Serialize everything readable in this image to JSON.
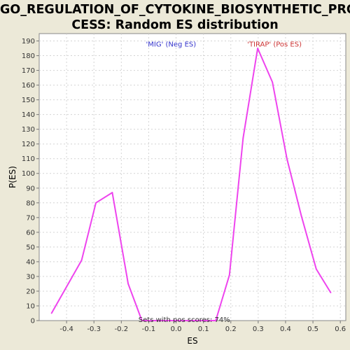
{
  "header": {
    "title_line1": "GO_REGULATION_OF_CYTOKINE_BIOSYNTHETIC_PRO",
    "title_line2": "CESS: Random ES distribution"
  },
  "chart_data": {
    "type": "line",
    "title": "GO_REGULATION_OF_CYTOKINE_BIOSYNTHETIC_PROCESS: Random ES distribution",
    "xlabel": "ES",
    "ylabel": "P(ES)",
    "xlim": [
      -0.5,
      0.62
    ],
    "ylim": [
      0,
      195
    ],
    "grid": true,
    "x_ticks": [
      "-0.4",
      "-0.3",
      "-0.2",
      "-0.1",
      "0.0",
      "0.1",
      "0.2",
      "0.3",
      "0.4",
      "0.5",
      "0.6"
    ],
    "x_tick_values": [
      -0.4,
      -0.3,
      -0.2,
      -0.1,
      0.0,
      0.1,
      0.2,
      0.3,
      0.4,
      0.5,
      0.6
    ],
    "y_ticks": [
      0,
      10,
      20,
      30,
      40,
      50,
      60,
      70,
      80,
      90,
      100,
      110,
      120,
      130,
      140,
      150,
      160,
      170,
      180,
      190
    ],
    "series": [
      {
        "color": "#ee44ee",
        "x": [
          -0.455,
          -0.345,
          -0.293,
          -0.233,
          -0.175,
          -0.125,
          0.145,
          0.195,
          0.245,
          0.298,
          0.352,
          0.405,
          0.458,
          0.512,
          0.565
        ],
        "y": [
          5,
          41,
          80,
          87,
          25,
          0,
          0,
          31,
          124,
          185,
          162,
          110,
          71,
          35,
          19
        ]
      }
    ],
    "annotations": [
      {
        "text": "'MIG' (Neg ES)",
        "x": -0.11,
        "y": 188,
        "color": "#3333cc"
      },
      {
        "text": "'TIRAP' (Pos ES)",
        "x": 0.26,
        "y": 188,
        "color": "#cc3333"
      },
      {
        "text": "Sets with pos scores: 74%",
        "x": 0.03,
        "y": 1,
        "color": "#333333"
      }
    ]
  }
}
